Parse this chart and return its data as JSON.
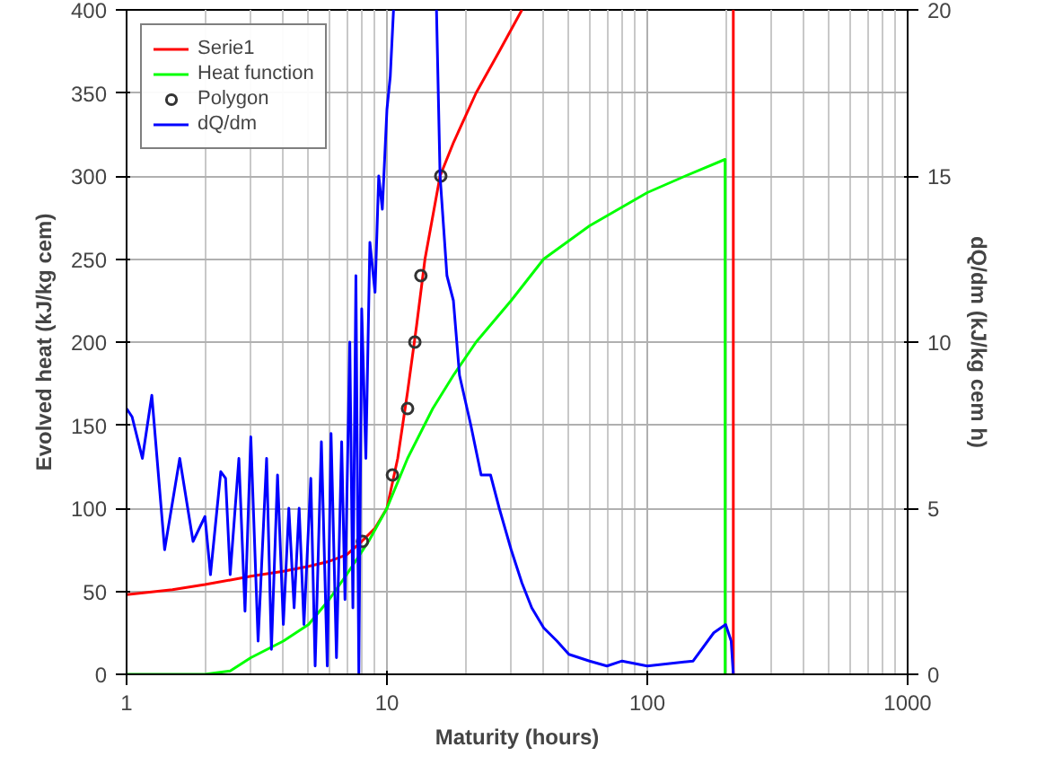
{
  "chart_data": {
    "type": "line",
    "xlabel": "Maturity (hours)",
    "ylabel": "Evolved heat (kJ/kg cem)",
    "y2label": "dQ/dm (kJ/kg cem h)",
    "log": "x",
    "xlim": [
      1,
      1000
    ],
    "xticks": [
      1,
      10,
      100,
      1000
    ],
    "ylim": [
      0,
      400
    ],
    "yticks": [
      0,
      50,
      100,
      150,
      200,
      250,
      300,
      350,
      400
    ],
    "y2lim": [
      0,
      20
    ],
    "y2ticks": [
      0,
      5,
      10,
      15,
      20
    ],
    "grid": true,
    "legend": "top left",
    "series": [
      {
        "name": "Serie1",
        "color": "#ff0000",
        "x": [
          1,
          1.5,
          2,
          3,
          4,
          5,
          6,
          7,
          8,
          9,
          10,
          11,
          12,
          13,
          14,
          16,
          18,
          22,
          27,
          33
        ],
        "values": [
          48,
          51,
          54,
          59,
          62,
          65,
          68,
          72,
          80,
          88,
          100,
          130,
          170,
          210,
          250,
          300,
          320,
          350,
          375,
          400
        ]
      },
      {
        "color": "#ff0000",
        "x": [
          214,
          214
        ],
        "values": [
          400,
          0
        ]
      },
      {
        "name": "Heat function",
        "color": "#00ff00",
        "x": [
          1,
          2,
          2.5,
          3,
          4,
          5,
          6,
          7,
          8.5,
          10,
          12,
          15,
          18,
          22,
          30,
          40,
          60,
          100,
          140,
          199,
          199
        ],
        "values": [
          0,
          0,
          2,
          10,
          20,
          30,
          45,
          60,
          80,
          100,
          130,
          160,
          180,
          200,
          225,
          250,
          270,
          290,
          300,
          310,
          0
        ]
      },
      {
        "name": "Polygon",
        "type": "scatter",
        "marker": "circle",
        "color": "#333333",
        "x": [
          8.05,
          10.5,
          12.0,
          12.8,
          13.5,
          16.1
        ],
        "values": [
          80,
          120,
          160,
          200,
          240,
          300
        ]
      },
      {
        "name": "dQ/dm",
        "axis": "y2",
        "color": "#0000ff",
        "x": [
          1,
          1.05,
          1.15,
          1.25,
          1.4,
          1.6,
          1.8,
          2.0,
          2.1,
          2.3,
          2.4,
          2.5,
          2.7,
          2.85,
          3.0,
          3.2,
          3.45,
          3.6,
          3.8,
          4.0,
          4.2,
          4.4,
          4.6,
          4.8,
          5.1,
          5.3,
          5.6,
          5.9,
          6.1,
          6.4,
          6.7,
          6.9,
          7.2,
          7.4,
          7.6,
          7.8,
          8.0,
          8.3,
          8.6,
          9.0,
          9.3,
          9.6,
          10.0,
          10.3,
          10.6,
          13,
          15.5,
          16,
          17,
          18,
          19,
          21,
          23,
          25,
          27,
          30,
          33,
          36,
          40,
          45,
          50,
          60,
          70,
          80,
          100,
          150,
          180,
          200,
          210,
          214
        ],
        "values": [
          8.0,
          7.75,
          6.5,
          8.4,
          3.75,
          6.5,
          4.0,
          4.75,
          3.0,
          6.1,
          5.9,
          3.0,
          6.5,
          1.9,
          7.15,
          1.0,
          6.5,
          0.75,
          6.0,
          1.5,
          5.0,
          2.0,
          5.0,
          1.5,
          5.9,
          0.25,
          7.0,
          0.25,
          7.25,
          0.5,
          7.0,
          2.25,
          10.0,
          2.0,
          12.0,
          0.0,
          11.0,
          6.5,
          13.0,
          11.5,
          15.0,
          14.0,
          17.0,
          18.0,
          20.0,
          null,
          20.0,
          15.0,
          12.0,
          11.25,
          9.0,
          7.5,
          6.0,
          6.0,
          5.0,
          3.75,
          2.75,
          2.0,
          1.4,
          1.0,
          0.6,
          0.4,
          0.25,
          0.4,
          0.25,
          0.4,
          1.25,
          1.5,
          1.0,
          0.0
        ]
      }
    ]
  }
}
